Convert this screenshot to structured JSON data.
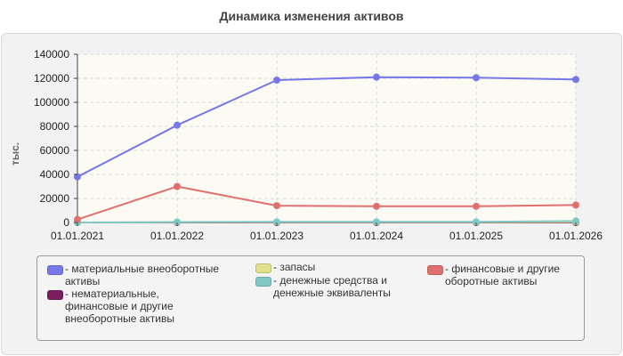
{
  "chart_data": {
    "type": "line",
    "title": "Динамика изменения активов",
    "ylabel": "тыс.",
    "xlabel": "",
    "categories": [
      "01.01.2021",
      "01.01.2022",
      "01.01.2023",
      "01.01.2024",
      "01.01.2025",
      "01.01.2026"
    ],
    "ylim": [
      0,
      140000
    ],
    "yticks": [
      0,
      20000,
      40000,
      60000,
      80000,
      100000,
      120000,
      140000
    ],
    "grid": true,
    "legend_position": "bottom",
    "series": [
      {
        "name": "- материальные внеоборотные активы",
        "color": "#7777e8",
        "values": [
          38000,
          81000,
          118500,
          121000,
          120500,
          119000
        ]
      },
      {
        "name": "- нематериальные, финансовые и другие внеоборотные активы",
        "color": "#7a1e5e",
        "values": [
          0,
          0,
          0,
          0,
          0,
          0
        ]
      },
      {
        "name": "- запасы",
        "color": "#e0e08a",
        "values": [
          0,
          200,
          300,
          300,
          300,
          500
        ]
      },
      {
        "name": "- денежные средства и денежные эквиваленты",
        "color": "#80c8c4",
        "values": [
          0,
          400,
          500,
          500,
          500,
          1200
        ]
      },
      {
        "name": "- финансовые и другие оборотные активы",
        "color": "#e07070",
        "values": [
          2500,
          30000,
          14000,
          13500,
          13500,
          14500
        ]
      }
    ]
  }
}
